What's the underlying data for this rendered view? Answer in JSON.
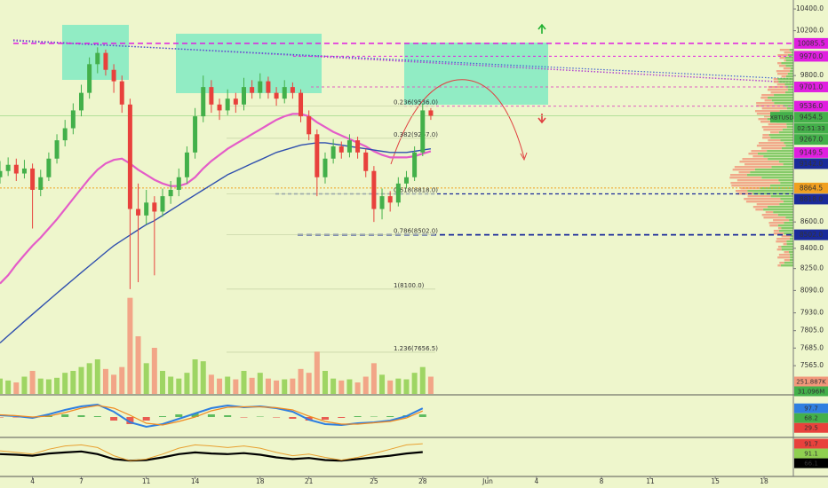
{
  "chart_data": {
    "type": "candlestick",
    "symbol": "XBTUSD",
    "countdown": "02:51:33",
    "log": true,
    "xlim": [
      2,
      50.8
    ],
    "xticks": [
      4,
      7,
      11,
      14,
      18,
      21,
      25,
      28,
      {
        "value": 32,
        "label": "Jun"
      },
      {
        "value": 35,
        "label": "4"
      },
      {
        "value": 39,
        "label": "8"
      },
      {
        "value": 42,
        "label": "11"
      },
      {
        "value": 46,
        "label": "15"
      },
      {
        "value": 49,
        "label": "18"
      }
    ],
    "ylim": [
      7400,
      10500
    ],
    "yticks": [
      {
        "value": 10400,
        "label": "10400.0"
      },
      {
        "value": 10200,
        "label": "10200.0"
      },
      {
        "value": 9800,
        "label": "9800.0"
      },
      {
        "value": 8600,
        "label": "8600.0"
      },
      {
        "value": 8400,
        "label": "8400.0"
      },
      {
        "value": 8250,
        "label": "8250.0"
      },
      {
        "value": 8090,
        "label": "8090.0"
      },
      {
        "value": 7930,
        "label": "7930.0"
      },
      {
        "value": 7805,
        "label": "7805.0"
      },
      {
        "value": 7685,
        "label": "7685.0"
      },
      {
        "value": 7565,
        "label": "7565.0"
      }
    ],
    "up_color": "#43b04a",
    "down_color": "#e8413c",
    "x": [
      2,
      2.5,
      3,
      3.5,
      4,
      4.5,
      5,
      5.5,
      6,
      6.5,
      7,
      7.5,
      8,
      8.5,
      9,
      9.5,
      10,
      10.5,
      11,
      11.5,
      12,
      12.5,
      13,
      13.5,
      14,
      14.5,
      15,
      15.5,
      16,
      16.5,
      17,
      17.5,
      18,
      18.5,
      19,
      19.5,
      20,
      20.5,
      21,
      21.5,
      22,
      22.5,
      23,
      23.5,
      24,
      24.5,
      25,
      25.5,
      26,
      26.5,
      27,
      27.5,
      28,
      28.5
    ],
    "open": [
      8950,
      9000,
      9050,
      8980,
      9020,
      8850,
      8950,
      9100,
      9250,
      9350,
      9500,
      9650,
      9900,
      10000,
      9850,
      9750,
      9550,
      8700,
      8650,
      8750,
      8680,
      8800,
      8850,
      8950,
      9150,
      9450,
      9700,
      9550,
      9500,
      9600,
      9550,
      9700,
      9650,
      9750,
      9650,
      9600,
      9700,
      9650,
      9450,
      9300,
      8950,
      9100,
      9200,
      9150,
      9250,
      9150,
      9000,
      8700,
      8800,
      8750,
      8900,
      8950,
      9150,
      9500
    ],
    "high": [
      9080,
      9110,
      9100,
      9090,
      9060,
      9010,
      9150,
      9300,
      9420,
      9560,
      9720,
      9960,
      10050,
      10030,
      9900,
      9800,
      9600,
      8900,
      8850,
      8800,
      8860,
      8920,
      9020,
      9200,
      9520,
      9800,
      9760,
      9600,
      9680,
      9650,
      9780,
      9760,
      9820,
      9790,
      9700,
      9760,
      9740,
      9680,
      9500,
      9340,
      9150,
      9260,
      9240,
      9300,
      9280,
      9180,
      9040,
      8860,
      8840,
      8950,
      9000,
      9200,
      9560,
      9520
    ],
    "low": [
      8900,
      8960,
      8920,
      8940,
      8550,
      8800,
      8920,
      9060,
      9200,
      9300,
      9450,
      9600,
      9820,
      9800,
      9650,
      9480,
      8100,
      8150,
      8580,
      8200,
      8640,
      8740,
      8800,
      8900,
      9100,
      9400,
      9480,
      9420,
      9460,
      9480,
      9500,
      9600,
      9600,
      9600,
      9540,
      9560,
      9600,
      9400,
      9250,
      8800,
      8900,
      9060,
      9100,
      9110,
      9100,
      8950,
      8600,
      8620,
      8680,
      8720,
      8860,
      8920,
      9120,
      9420
    ],
    "close": [
      9000,
      9050,
      8980,
      9020,
      8850,
      8950,
      9100,
      9250,
      9350,
      9500,
      9650,
      9900,
      10000,
      9850,
      9750,
      9550,
      8700,
      8650,
      8750,
      8680,
      8800,
      8850,
      8950,
      9150,
      9450,
      9700,
      9550,
      9500,
      9600,
      9550,
      9700,
      9650,
      9750,
      9650,
      9600,
      9700,
      9650,
      9450,
      9300,
      8950,
      9100,
      9200,
      9150,
      9250,
      9150,
      9000,
      8700,
      8800,
      8750,
      8900,
      8950,
      9150,
      9500,
      9454.5
    ],
    "ma": [
      {
        "color": "#e45cc8",
        "values": [
          8140,
          8200,
          8280,
          8350,
          8420,
          8480,
          8550,
          8620,
          8700,
          8780,
          8860,
          8940,
          9010,
          9060,
          9090,
          9100,
          9060,
          9010,
          8970,
          8930,
          8900,
          8880,
          8880,
          8900,
          8950,
          9020,
          9080,
          9130,
          9180,
          9220,
          9260,
          9300,
          9340,
          9380,
          9420,
          9450,
          9470,
          9470,
          9450,
          9400,
          9360,
          9320,
          9290,
          9260,
          9230,
          9200,
          9160,
          9130,
          9110,
          9110,
          9110,
          9120,
          9140,
          9160
        ]
      },
      {
        "color": "#2f4fae",
        "values": [
          7720,
          7770,
          7820,
          7870,
          7920,
          7970,
          8020,
          8070,
          8120,
          8170,
          8220,
          8270,
          8320,
          8370,
          8420,
          8460,
          8500,
          8540,
          8580,
          8610,
          8650,
          8690,
          8730,
          8770,
          8810,
          8850,
          8890,
          8930,
          8970,
          9000,
          9030,
          9060,
          9090,
          9120,
          9150,
          9170,
          9190,
          9210,
          9220,
          9230,
          9230,
          9220,
          9210,
          9200,
          9190,
          9180,
          9170,
          9160,
          9150,
          9150,
          9150,
          9160,
          9170,
          9180
        ]
      }
    ],
    "price_labels": [
      {
        "value": 10085.5,
        "label": "10085.5",
        "color": "#e01ee0"
      },
      {
        "value": 9970,
        "label": "9970.0",
        "color": "#e01ee0"
      },
      {
        "value": 9701,
        "label": "9701.0",
        "color": "#e01ee0"
      },
      {
        "value": 9536,
        "label": "9536.0",
        "color": "#e01ee0"
      },
      {
        "value": 9454.5,
        "label": "9454.5",
        "color": "#43b04a"
      },
      {
        "value": 9267,
        "label": "9267.0",
        "color": "#43b04a"
      },
      {
        "value": 9149.5,
        "label": "9149.5",
        "color": "#e01ee0"
      },
      {
        "value": 9142,
        "label": "9142.0",
        "color": "#1a2a9a"
      },
      {
        "value": 8864.5,
        "label": "8864.5",
        "color": "#f0a020"
      },
      {
        "value": 8818,
        "label": "8818.0",
        "color": "#1a2a9a"
      },
      {
        "value": 8502,
        "label": "8502.0",
        "color": "#1a2a9a"
      }
    ],
    "fib_labels": [
      {
        "value": 9536,
        "label": "0.236(9536.0)"
      },
      {
        "value": 9267,
        "label": "0.382(9267.0)"
      },
      {
        "value": 8818,
        "label": "0.618(8818.0)"
      },
      {
        "value": 8502,
        "label": "0.786(8502.0)"
      },
      {
        "value": 8100,
        "label": "1(8100.0)"
      },
      {
        "value": 7656.5,
        "label": "1.236(7656.5)"
      }
    ],
    "volume": {
      "ylim": [
        0,
        300
      ],
      "values": [
        40,
        35,
        30,
        45,
        60,
        40,
        38,
        42,
        55,
        60,
        70,
        80,
        90,
        65,
        50,
        70,
        250,
        150,
        80,
        120,
        60,
        45,
        40,
        55,
        90,
        85,
        50,
        40,
        45,
        38,
        60,
        42,
        55,
        40,
        35,
        38,
        40,
        65,
        55,
        110,
        60,
        40,
        35,
        38,
        30,
        45,
        80,
        50,
        35,
        40,
        38,
        55,
        70,
        45
      ],
      "up_color": "#8fcf50",
      "down_color": "#f2977a",
      "labels": [
        {
          "label": "251.887K",
          "color": "#f2977a"
        },
        {
          "label": "31.096M",
          "color": "#43b04a"
        }
      ]
    },
    "indicator_x": [
      2,
      3,
      4,
      5,
      6,
      7,
      8,
      9,
      10,
      11,
      12,
      13,
      14,
      15,
      16,
      17,
      18,
      19,
      20,
      21,
      22,
      23,
      24,
      25,
      26,
      27,
      28
    ],
    "macd": {
      "ylim": [
        -200,
        200
      ],
      "series": [
        {
          "color": "#2f7fe0",
          "values": [
            20,
            10,
            -10,
            30,
            80,
            120,
            140,
            60,
            -60,
            -110,
            -80,
            -20,
            40,
            100,
            130,
            110,
            120,
            100,
            60,
            -30,
            -80,
            -90,
            -70,
            -60,
            -40,
            10,
            97.7
          ]
        },
        {
          "color": "#f08a20",
          "values": [
            25,
            15,
            0,
            10,
            50,
            100,
            130,
            100,
            20,
            -70,
            -90,
            -50,
            0,
            70,
            110,
            115,
            115,
            105,
            80,
            10,
            -50,
            -80,
            -80,
            -65,
            -50,
            -10,
            68.2
          ]
        }
      ],
      "hist": [
        -5,
        -5,
        -10,
        20,
        30,
        20,
        10,
        -40,
        -80,
        -40,
        10,
        30,
        40,
        30,
        20,
        -5,
        5,
        -5,
        -20,
        -40,
        -30,
        -10,
        10,
        5,
        10,
        20,
        29.5
      ],
      "hist_up": "#43b04a",
      "hist_down": "#e8413c",
      "last_values": [
        {
          "value": 97.7,
          "color": "#2f7fe0"
        },
        {
          "value": 68.2,
          "color": "#43b04a"
        },
        {
          "value": 29.5,
          "color": "#e8413c"
        }
      ]
    },
    "stoch": {
      "ylim": [
        0,
        100
      ],
      "series": [
        {
          "color": "#000000",
          "values": [
            60,
            58,
            55,
            62,
            65,
            68,
            60,
            45,
            40,
            42,
            50,
            60,
            65,
            62,
            60,
            63,
            58,
            50,
            45,
            48,
            42,
            40,
            45,
            50,
            55,
            62,
            66.1
          ]
        },
        {
          "color": "#e8a030",
          "values": [
            70,
            65,
            60,
            75,
            85,
            88,
            80,
            55,
            40,
            45,
            60,
            78,
            88,
            85,
            80,
            85,
            78,
            65,
            55,
            60,
            50,
            42,
            50,
            62,
            75,
            88,
            91.7
          ]
        }
      ],
      "last_values": [
        {
          "value": 91.7,
          "color": "#e8413c"
        },
        {
          "value": 91.1,
          "color": "#8fcf50"
        },
        {
          "value": 66.1,
          "color": "#000000"
        }
      ]
    }
  }
}
